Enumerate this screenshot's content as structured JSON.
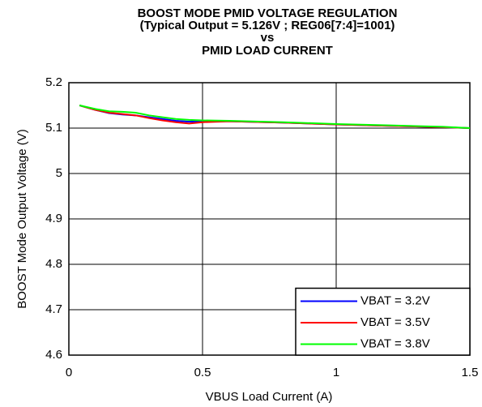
{
  "chart_data": {
    "type": "line",
    "title": [
      "BOOST MODE PMID VOLTAGE REGULATION",
      "(Typical Output = 5.126V ; REG06[7:4]=1001)",
      "vs",
      "PMID LOAD CURRENT"
    ],
    "x_label": "VBUS Load Current (A)",
    "y_label": "BOOST Mode Output Voltage (V)",
    "x": [
      0.04,
      0.1,
      0.15,
      0.2,
      0.25,
      0.3,
      0.35,
      0.4,
      0.45,
      0.5,
      0.6,
      0.8,
      1.0,
      1.2,
      1.4,
      1.5
    ],
    "series": [
      {
        "name": "VBAT = 3.2V",
        "color": "#0000ff",
        "values": [
          5.15,
          5.14,
          5.133,
          5.13,
          5.128,
          5.124,
          5.12,
          5.116,
          5.114,
          5.115,
          5.115,
          5.112,
          5.108,
          5.105,
          5.102,
          5.1
        ]
      },
      {
        "name": "VBAT = 3.5V",
        "color": "#ff0000",
        "values": [
          5.15,
          5.14,
          5.134,
          5.131,
          5.128,
          5.122,
          5.117,
          5.113,
          5.11,
          5.113,
          5.115,
          5.112,
          5.108,
          5.105,
          5.102,
          5.1
        ]
      },
      {
        "name": "VBAT = 3.8V",
        "color": "#00ff00",
        "values": [
          5.15,
          5.142,
          5.137,
          5.136,
          5.134,
          5.128,
          5.124,
          5.12,
          5.118,
          5.117,
          5.116,
          5.113,
          5.109,
          5.106,
          5.103,
          5.1
        ]
      }
    ],
    "xlim": [
      0,
      1.5
    ],
    "xticks": [
      0,
      0.5,
      1,
      1.5
    ],
    "ylim": [
      4.6,
      5.2
    ],
    "yticks": [
      4.6,
      4.7,
      4.8,
      4.9,
      5,
      5.1,
      5.2
    ],
    "grid": true,
    "legend": "lower right"
  }
}
